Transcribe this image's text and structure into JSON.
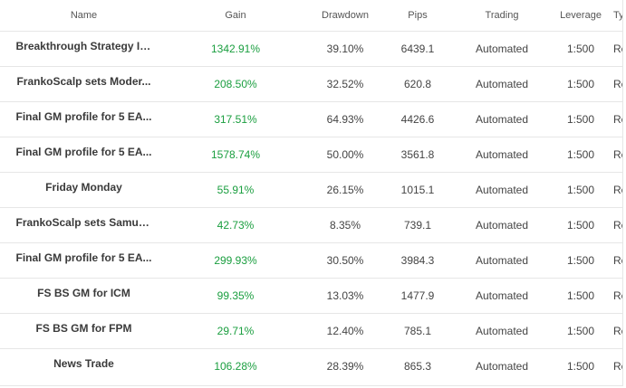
{
  "headers": {
    "name": "Name",
    "gain": "Gain",
    "drawdown": "Drawdown",
    "pips": "Pips",
    "trading": "Trading",
    "leverage": "Leverage",
    "type": "Type"
  },
  "rows": [
    {
      "name": "Breakthrough Strategy IC...",
      "gain": "1342.91%",
      "drawdown": "39.10%",
      "pips": "6439.1",
      "trading": "Automated",
      "leverage": "1:500",
      "type": "Real"
    },
    {
      "name": "FrankoScalp sets Moder...",
      "gain": "208.50%",
      "drawdown": "32.52%",
      "pips": "620.8",
      "trading": "Automated",
      "leverage": "1:500",
      "type": "Real"
    },
    {
      "name": "Final GM profile for 5 EA...",
      "gain": "317.51%",
      "drawdown": "64.93%",
      "pips": "4426.6",
      "trading": "Automated",
      "leverage": "1:500",
      "type": "Real"
    },
    {
      "name": "Final GM profile for 5 EA...",
      "gain": "1578.74%",
      "drawdown": "50.00%",
      "pips": "3561.8",
      "trading": "Automated",
      "leverage": "1:500",
      "type": "Real"
    },
    {
      "name": "Friday Monday",
      "gain": "55.91%",
      "drawdown": "26.15%",
      "pips": "1015.1",
      "trading": "Automated",
      "leverage": "1:500",
      "type": "Real"
    },
    {
      "name": "FrankoScalp sets Samurai",
      "gain": "42.73%",
      "drawdown": "8.35%",
      "pips": "739.1",
      "trading": "Automated",
      "leverage": "1:500",
      "type": "Real"
    },
    {
      "name": "Final GM profile for 5 EA...",
      "gain": "299.93%",
      "drawdown": "30.50%",
      "pips": "3984.3",
      "trading": "Automated",
      "leverage": "1:500",
      "type": "Real"
    },
    {
      "name": "FS BS GM for ICM",
      "gain": "99.35%",
      "drawdown": "13.03%",
      "pips": "1477.9",
      "trading": "Automated",
      "leverage": "1:500",
      "type": "Real"
    },
    {
      "name": "FS BS GM for FPM",
      "gain": "29.71%",
      "drawdown": "12.40%",
      "pips": "785.1",
      "trading": "Automated",
      "leverage": "1:500",
      "type": "Real"
    },
    {
      "name": "News Trade",
      "gain": "106.28%",
      "drawdown": "28.39%",
      "pips": "865.3",
      "trading": "Automated",
      "leverage": "1:500",
      "type": "Real"
    }
  ],
  "colors": {
    "gain": "#1a9e3f",
    "text": "#444444",
    "border": "#e6e6e6"
  }
}
